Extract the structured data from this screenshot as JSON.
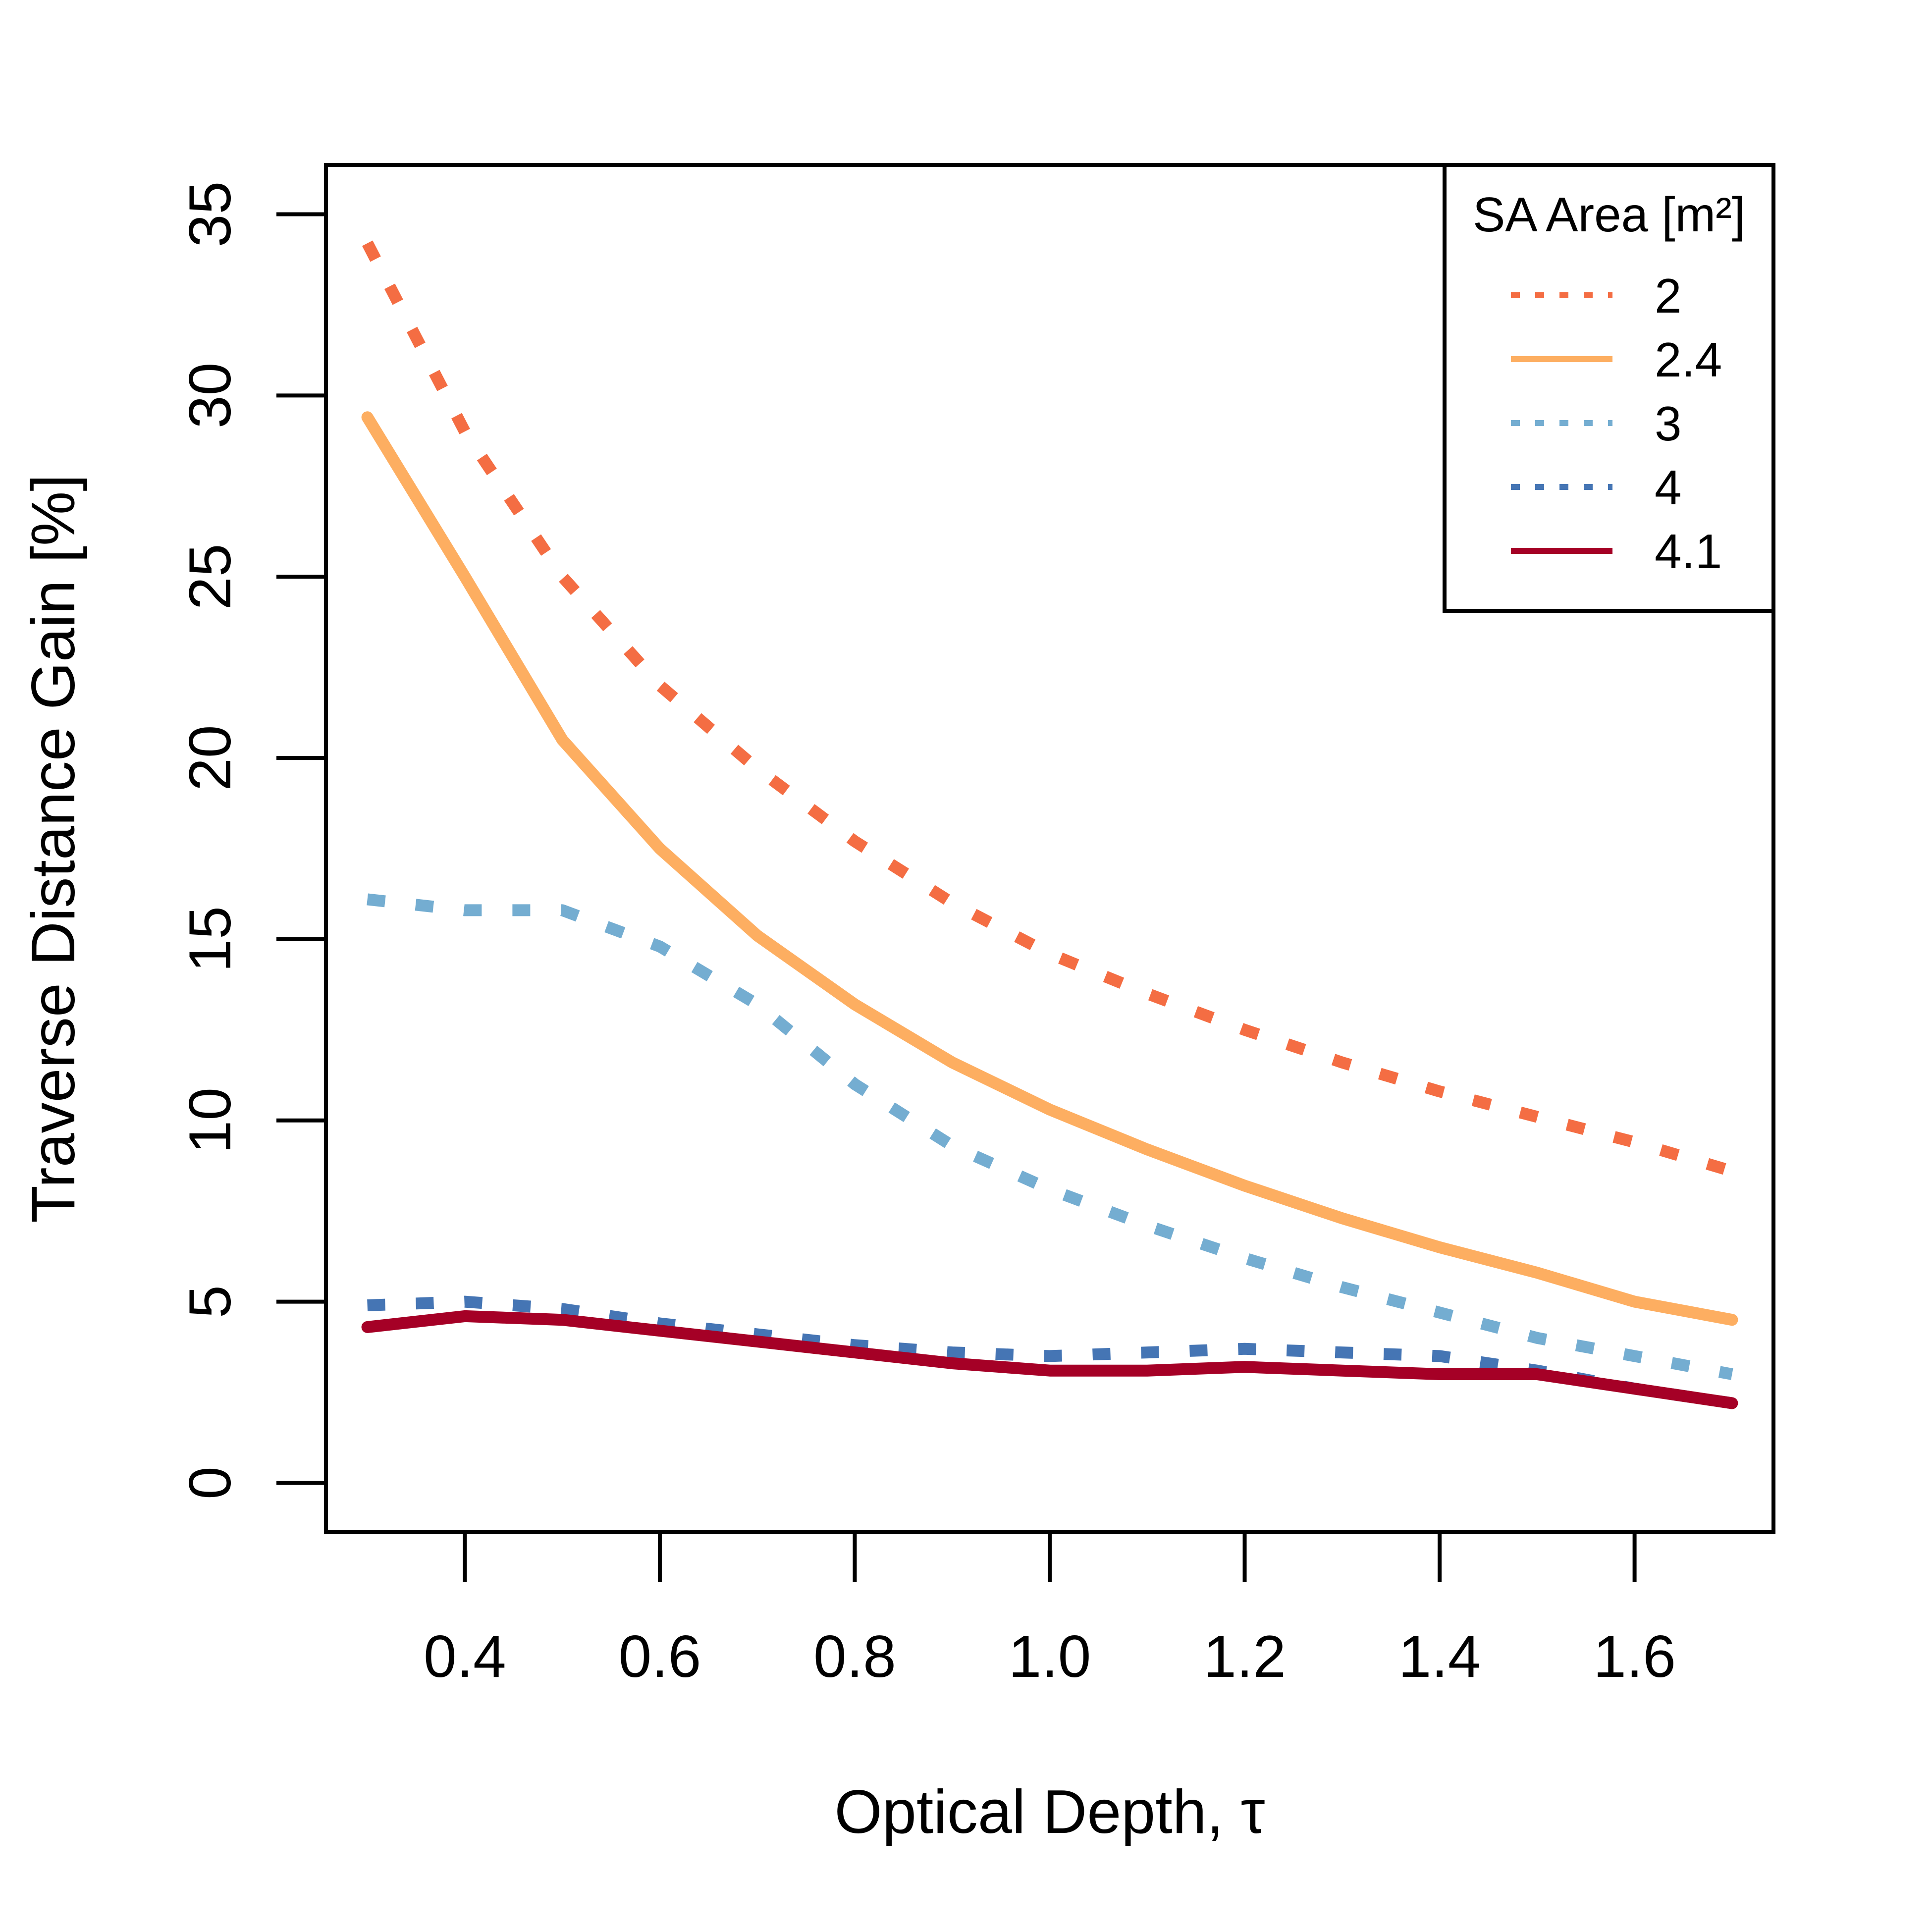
{
  "chart_data": {
    "type": "line",
    "title": "",
    "xlabel": "Optical Depth, τ",
    "ylabel": "Traverse Distance Gain [%]",
    "xlim": [
      0.2575,
      1.7425
    ],
    "ylim": [
      -1.36,
      36.36
    ],
    "xticks": [
      0.4,
      0.6,
      0.8,
      1.0,
      1.2,
      1.4,
      1.6
    ],
    "xtick_labels": [
      "0.4",
      "0.6",
      "0.8",
      "1.0",
      "1.2",
      "1.4",
      "1.6"
    ],
    "yticks": [
      0,
      5,
      10,
      15,
      20,
      25,
      30,
      35
    ],
    "ytick_labels": [
      "0",
      "5",
      "10",
      "15",
      "20",
      "25",
      "30",
      "35"
    ],
    "grid": false,
    "legend": {
      "title": "SA Area [m²]",
      "position": "top-right"
    },
    "x": [
      0.3,
      0.4,
      0.5,
      0.6,
      0.7,
      0.8,
      0.9,
      1.0,
      1.1,
      1.2,
      1.3,
      1.4,
      1.5,
      1.6,
      1.7
    ],
    "series": [
      {
        "name": "2",
        "color": "#f46d43",
        "dash": "dotted",
        "values": [
          34.2,
          29.0,
          25.0,
          22.0,
          19.7,
          17.7,
          16.0,
          14.6,
          13.5,
          12.5,
          11.6,
          10.8,
          10.1,
          9.4,
          8.6
        ]
      },
      {
        "name": "2.4",
        "color": "#fdae61",
        "dash": "solid",
        "values": [
          29.4,
          25.0,
          20.5,
          17.5,
          15.1,
          13.2,
          11.6,
          10.3,
          9.2,
          8.2,
          7.3,
          6.5,
          5.8,
          5.0,
          4.5
        ]
      },
      {
        "name": "3",
        "color": "#74add1",
        "dash": "dotted",
        "values": [
          16.1,
          15.8,
          15.8,
          14.8,
          13.2,
          11.0,
          9.3,
          8.1,
          7.1,
          6.2,
          5.4,
          4.7,
          4.0,
          3.5,
          3.0
        ]
      },
      {
        "name": "4",
        "color": "#4575b4",
        "dash": "dotted",
        "values": [
          4.9,
          5.0,
          4.8,
          4.4,
          4.1,
          3.8,
          3.6,
          3.5,
          3.6,
          3.7,
          3.6,
          3.5,
          3.1,
          2.6,
          2.2
        ]
      },
      {
        "name": "4.1",
        "color": "#a50026",
        "dash": "solid",
        "values": [
          4.3,
          4.6,
          4.5,
          4.2,
          3.9,
          3.6,
          3.3,
          3.1,
          3.1,
          3.2,
          3.1,
          3.0,
          3.0,
          2.6,
          2.2
        ]
      }
    ]
  }
}
